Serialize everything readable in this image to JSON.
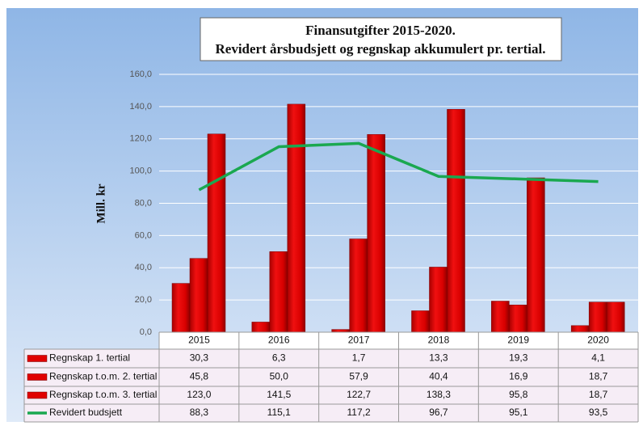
{
  "chart_data": {
    "type": "bar",
    "title": "Finansutgifter 2015-2020.",
    "subtitle": "Revidert årsbudsjett og regnskap akkumulert pr. tertial.",
    "y_label": "Mill. kr",
    "categories": [
      "2015",
      "2016",
      "2017",
      "2018",
      "2019",
      "2020"
    ],
    "series": [
      {
        "name": "Regnskap 1. tertial",
        "type": "bar",
        "color": "#e00000",
        "values": [
          30.3,
          6.3,
          1.7,
          13.3,
          19.3,
          4.1
        ],
        "value_labels": [
          "30,3",
          "6,3",
          "1,7",
          "13,3",
          "19,3",
          "4,1"
        ]
      },
      {
        "name": "Regnskap t.o.m. 2. tertial",
        "type": "bar",
        "color": "#e00000",
        "values": [
          45.8,
          50.0,
          57.9,
          40.4,
          16.9,
          18.7
        ],
        "value_labels": [
          "45,8",
          "50,0",
          "57,9",
          "40,4",
          "16,9",
          "18,7"
        ]
      },
      {
        "name": "Regnskap t.o.m. 3. tertial",
        "type": "bar",
        "color": "#e00000",
        "values": [
          123.0,
          141.5,
          122.7,
          138.3,
          95.8,
          18.7
        ],
        "value_labels": [
          "123,0",
          "141,5",
          "122,7",
          "138,3",
          "95,8",
          "18,7"
        ]
      },
      {
        "name": "Revidert budsjett",
        "type": "line",
        "color": "#1aa850",
        "values": [
          88.3,
          115.1,
          117.2,
          96.7,
          95.1,
          93.5
        ],
        "value_labels": [
          "88,3",
          "115,1",
          "117,2",
          "96,7",
          "95,1",
          "93,5"
        ]
      }
    ],
    "ylim": [
      0,
      160
    ],
    "yticks": [
      {
        "value": 0,
        "label": "0,0"
      },
      {
        "value": 20,
        "label": "20,0"
      },
      {
        "value": 40,
        "label": "40,0"
      },
      {
        "value": 60,
        "label": "60,0"
      },
      {
        "value": 80,
        "label": "80,0"
      },
      {
        "value": 100,
        "label": "100,0"
      },
      {
        "value": 120,
        "label": "120,0"
      },
      {
        "value": 140,
        "label": "140,0"
      },
      {
        "value": 160,
        "label": "160,0"
      }
    ],
    "grid": true
  }
}
